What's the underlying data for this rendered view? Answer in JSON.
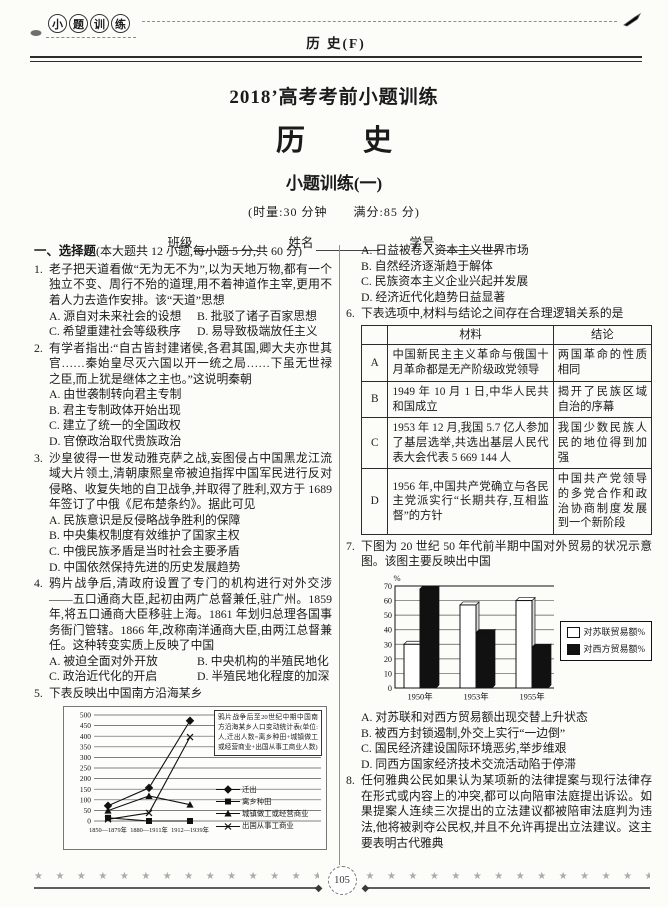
{
  "header": {
    "badge": [
      "小",
      "题",
      "训",
      "练"
    ],
    "subject": "历 史(F)"
  },
  "titles": {
    "series": "2018’高考考前小题训练",
    "subject": "历　　史",
    "set": "小题训练(一)",
    "meta": "(时量:30 分钟　　满分:85 分)"
  },
  "student_fields": [
    "班级",
    "姓名",
    "学号"
  ],
  "section_heading": {
    "lead": "一、选择题",
    "detail": "(本大题共 12 小题,每小题 5 分,共 60 分)"
  },
  "questions": [
    {
      "num": "1.",
      "stem": "老子把天道看做“无为无不为”,以为天地万物,都有一个独立不变、周行不殆的道理,用不着神道作主宰,更用不着人力去造作安排。该“天道”思想",
      "options": [
        "A. 源自对未来社会的设想",
        "B. 批驳了诸子百家思想",
        "C. 希望重建社会等级秩序",
        "D. 易导致极端放任主义"
      ],
      "option_layout": "two-col"
    },
    {
      "num": "2.",
      "stem": "有学者指出:“自古皆封建诸侯,各君其国,卿大夫亦世其官……秦始皇尽灭六国以开一统之局……下虽无世禄之臣,而上犹是继体之主也。”这说明秦朝",
      "options": [
        "A. 由世袭制转向君主专制",
        "B. 君主专制政体开始出现",
        "C. 建立了统一的全国政权",
        "D. 官僚政治取代贵族政治"
      ],
      "option_layout": "one-col"
    },
    {
      "num": "3.",
      "stem": "沙皇彼得一世发动雅克萨之战,妄图侵占中国黑龙江流域大片领土,清朝康熙皇帝被迫指挥中国军民进行反对侵略、收复失地的自卫战争,并取得了胜利,双方于 1689 年签订了中俄《尼布楚条约》。据此可见",
      "options": [
        "A. 民族意识是反侵略战争胜利的保障",
        "B. 中央集权制度有效维护了国家主权",
        "C. 中俄民族矛盾是当时社会主要矛盾",
        "D. 中国依然保持先进的历史发展趋势"
      ],
      "option_layout": "one-col"
    },
    {
      "num": "4.",
      "stem": "鸦片战争后,清政府设置了专门的机构进行对外交涉——五口通商大臣,起初由两广总督兼任,驻广州。1859 年,将五口通商大臣移驻上海。1861 年划归总理各国事务衙门管辖。1866 年,改称南洋通商大臣,由两江总督兼任。这种转变实质上反映了中国",
      "options": [
        "A. 被迫全面对外开放",
        "B. 中央机构的半殖民地化",
        "C. 政治近代化的开启",
        "D. 半殖民地化程度的加深"
      ],
      "option_layout": "two-col"
    },
    {
      "num": "5.",
      "stem": "下表反映出中国南方沿海某乡",
      "chart": "migration_line",
      "options": [
        "A. 日益被卷入资本主义世界市场",
        "B. 自然经济逐渐趋于解体",
        "C. 民族资本主义企业兴起并发展",
        "D. 经济近代化趋势日益显著"
      ],
      "option_layout": "one-col"
    },
    {
      "num": "6.",
      "stem": "下表选项中,材料与结论之间存在合理逻辑关系的是",
      "table": "table6"
    },
    {
      "num": "7.",
      "stem": "下图为 20 世纪 50 年代前半期中国对外贸易的状况示意图。该图主要反映出中国",
      "chart": "trade_bar",
      "options": [
        "A. 对苏联和对西方贸易额出现交替上升状态",
        "B. 被西方封锁遏制,外交上实行“一边倒”",
        "C. 国民经济建设国际环境恶劣,举步维艰",
        "D. 同西方国家经济技术交流活动陷于停滞"
      ],
      "option_layout": "one-col"
    },
    {
      "num": "8.",
      "stem": "任何雅典公民如果认为某项新的法律提案与现行法律存在形式或内容上的冲突,都可以向陪审法庭提出诉讼。如果提案人连续三次提出的立法建议都被陪审法庭判为违法,他将被剥夺公民权,并且不允许再提出立法建议。这主要表明古代雅典"
    }
  ],
  "table6": {
    "headers": [
      "材料",
      "结论"
    ],
    "rows": [
      {
        "key": "A",
        "material": "中国新民主主义革命与俄国十月革命都是无产阶级政党领导",
        "conclusion": "两国革命的性质相同"
      },
      {
        "key": "B",
        "material": "1949 年 10 月 1 日,中华人民共和国成立",
        "conclusion": "揭开了民族区域自治的序幕"
      },
      {
        "key": "C",
        "material": "1953 年 12 月,我国 5.7 亿人参加了基层选举,共选出基层人民代表大会代表 5 669 144 人",
        "conclusion": "我国少数民族人民的地位得到加强"
      },
      {
        "key": "D",
        "material": "1956 年,中国共产党确立与各民主党派实行“长期共存,互相监督”的方针",
        "conclusion": "中国共产党领导的多党合作和政治协商制度发展到一个新阶段"
      }
    ]
  },
  "chart_data": [
    {
      "id": "migration_line",
      "type": "line",
      "note": "鸦片战争后至20世纪中期中国南方沿海某乡人口变动统计表(单位: 人,迁出人数=离乡种田+城镇做工或经营商业+出国从事工商业人数)",
      "categories": [
        "1850—1879年",
        "1880—1911年",
        "1912—1939年"
      ],
      "series": [
        {
          "name": "迁出",
          "marker": "diamond",
          "values": [
            72,
            156,
            473
          ]
        },
        {
          "name": "离乡种田",
          "marker": "square",
          "values": [
            15,
            0,
            0
          ]
        },
        {
          "name": "城镇做工或经营商业",
          "marker": "triangle",
          "values": [
            49,
            118,
            77
          ]
        },
        {
          "name": "出国从事工商业",
          "marker": "x",
          "values": [
            8,
            38,
            396
          ]
        }
      ],
      "ylim": [
        0,
        500
      ],
      "ytick": 50,
      "grid": true,
      "legend_position": "right"
    },
    {
      "id": "trade_bar",
      "type": "bar",
      "ylabel": "%",
      "categories": [
        "1950年",
        "1953年",
        "1955年"
      ],
      "series": [
        {
          "name": "对苏联贸易额%",
          "fill": "#ffffff",
          "values": [
            30,
            57,
            60
          ]
        },
        {
          "name": "对西方贸易额%",
          "fill": "#111111",
          "values": [
            68,
            38,
            28
          ]
        }
      ],
      "ylim": [
        0,
        70
      ],
      "ytick": 10,
      "grid": true,
      "legend_position": "right"
    }
  ],
  "footer": {
    "page_number": "105",
    "stars_left": "★ ★ ★ ★ ★ ★ ★ ★ ★ ★ ★ ★ ★ ★ ★ ★ ★",
    "stars_right": "★ ★ ★ ★ ★ ★ ★ ★ ★ ★ ★ ★ ★ ★ ★ ★ ★"
  }
}
